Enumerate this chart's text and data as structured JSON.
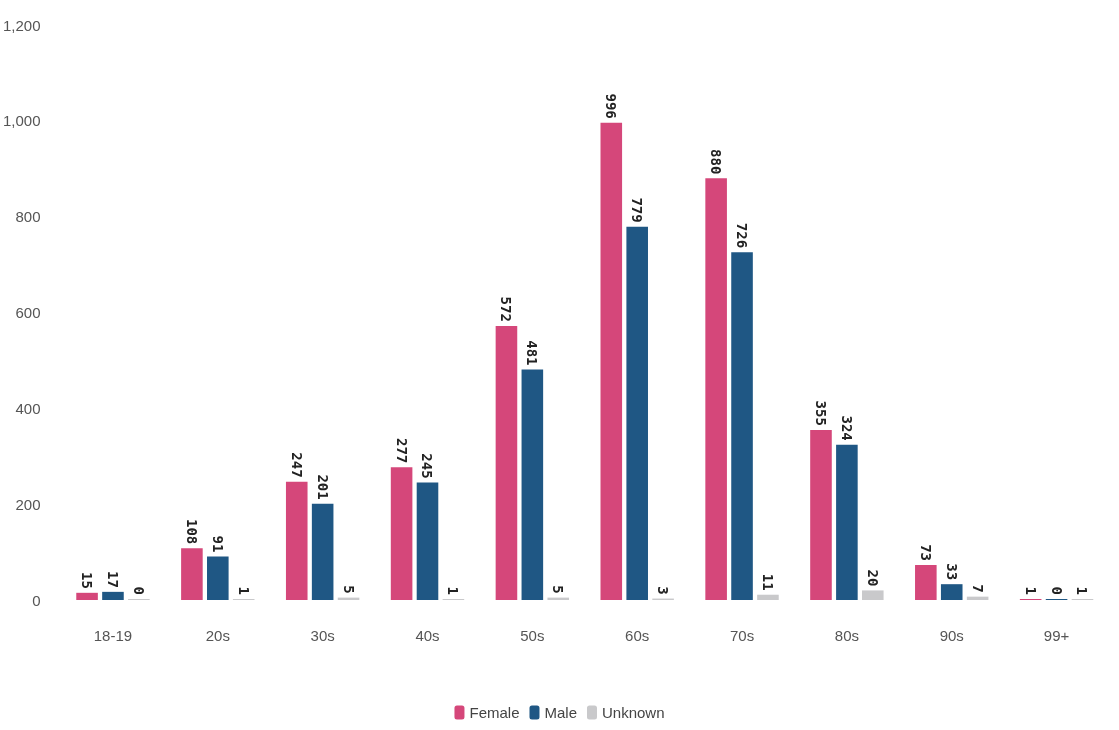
{
  "chart_data": {
    "type": "bar",
    "categories": [
      "18-19",
      "20s",
      "30s",
      "40s",
      "50s",
      "60s",
      "70s",
      "80s",
      "90s",
      "99+"
    ],
    "series": [
      {
        "name": "Female",
        "color": "#d5477a",
        "values": [
          15,
          108,
          247,
          277,
          572,
          996,
          880,
          355,
          73,
          1
        ]
      },
      {
        "name": "Male",
        "color": "#1f5784",
        "values": [
          17,
          91,
          201,
          245,
          481,
          779,
          726,
          324,
          33,
          0
        ]
      },
      {
        "name": "Unknown",
        "color": "#c9c9cb",
        "values": [
          0,
          1,
          5,
          1,
          5,
          3,
          11,
          20,
          7,
          1
        ]
      }
    ],
    "ylim": [
      0,
      1200
    ],
    "yticks": [
      0,
      200,
      400,
      600,
      800,
      {
        "value": 1000,
        "label": "1,000"
      },
      {
        "value": 1200,
        "label": "1,200"
      }
    ],
    "data_labels": true,
    "grid": false,
    "legend": "bottom"
  }
}
